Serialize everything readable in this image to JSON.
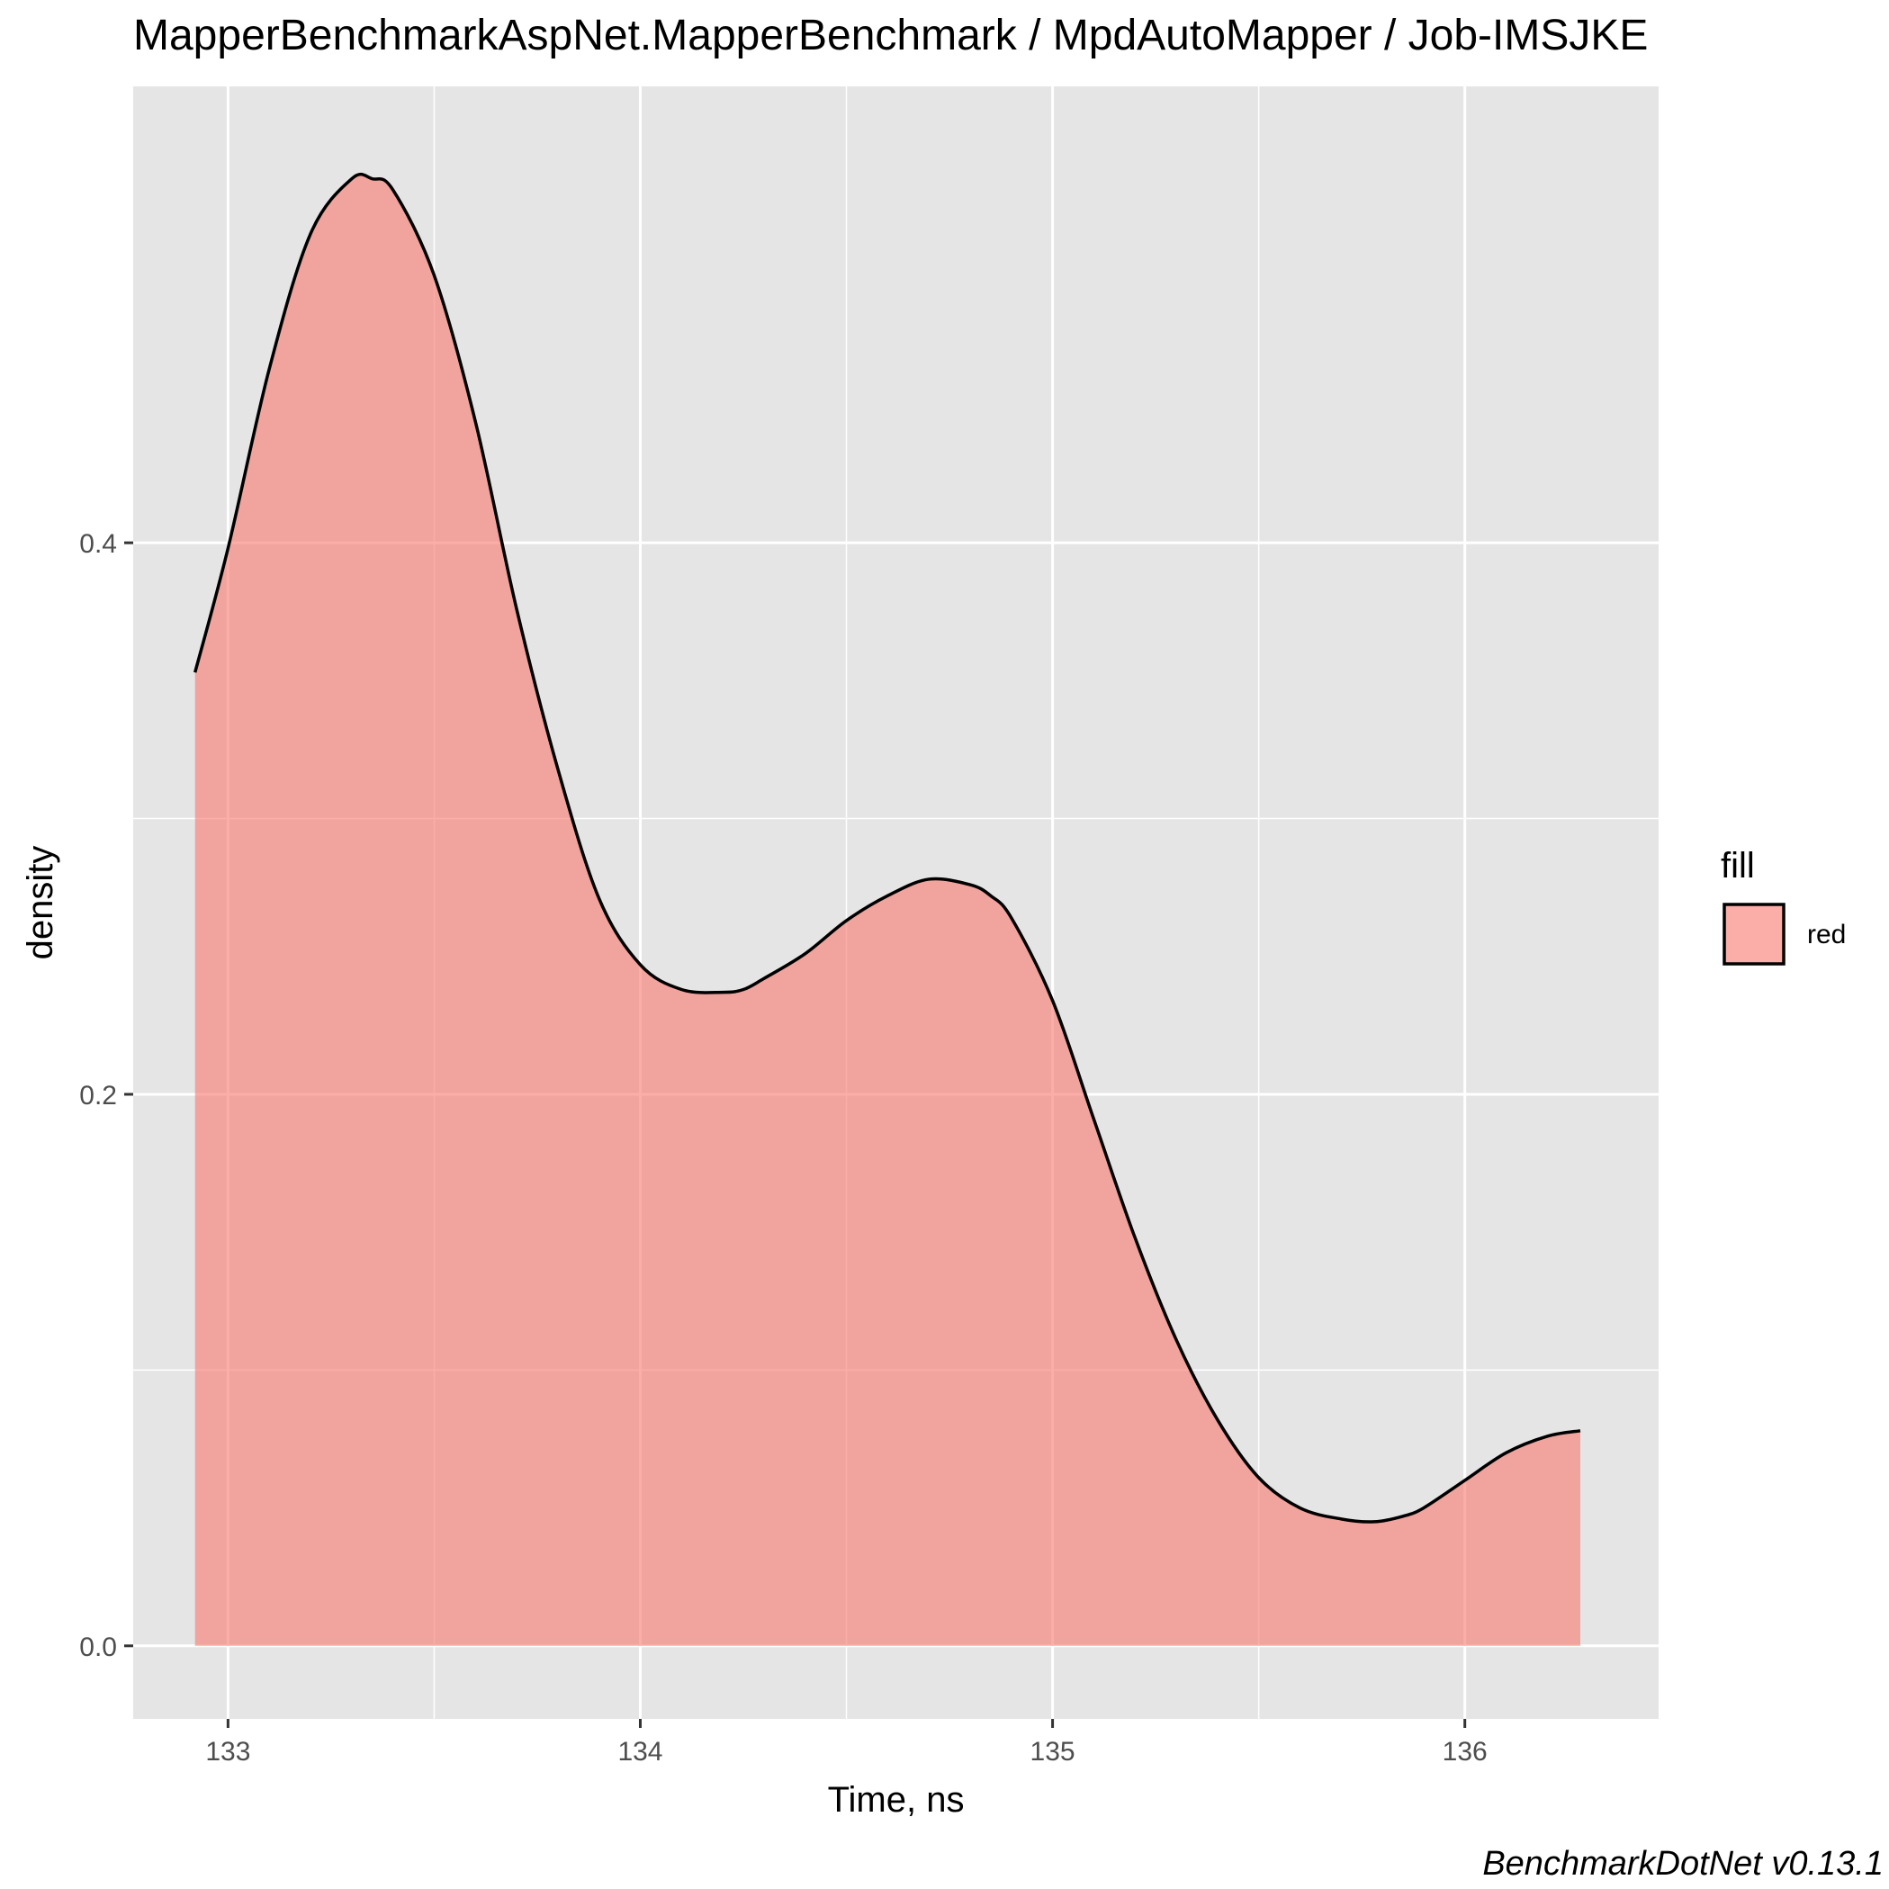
{
  "title": "MapperBenchmarkAspNet.MapperBenchmark / MpdAutoMapper / Job-IMSJKE",
  "caption": "BenchmarkDotNet v0.13.1",
  "colors": {
    "panel_background": "#e5e5e5",
    "grid": "#ffffff",
    "fill": "#f8766d",
    "line": "#000000"
  },
  "chart_data": {
    "type": "area",
    "title": "MapperBenchmarkAspNet.MapperBenchmark / MpdAutoMapper / Job-IMSJKE",
    "xlabel": "Time, ns",
    "ylabel": "density",
    "xlim": [
      132.77,
      136.47
    ],
    "ylim": [
      -0.0265,
      0.5655
    ],
    "x_ticks": [
      133,
      134,
      135,
      136
    ],
    "x_tick_labels": [
      "133",
      "134",
      "135",
      "136"
    ],
    "y_ticks": [
      0.0,
      0.2,
      0.4
    ],
    "y_tick_labels": [
      "0.0",
      "0.2",
      "0.4"
    ],
    "grid": true,
    "legend": {
      "title": "fill",
      "placement": "right",
      "entries": [
        "red"
      ]
    },
    "series": [
      {
        "name": "red",
        "fill_alpha": 0.6,
        "x": [
          132.92,
          133.0,
          133.1,
          133.2,
          133.3,
          133.35,
          133.4,
          133.5,
          133.6,
          133.7,
          133.8,
          133.9,
          134.0,
          134.1,
          134.2,
          134.25,
          134.3,
          134.4,
          134.5,
          134.6,
          134.7,
          134.8,
          134.85,
          134.9,
          135.0,
          135.1,
          135.2,
          135.3,
          135.4,
          135.5,
          135.6,
          135.7,
          135.78,
          135.85,
          135.9,
          136.0,
          136.1,
          136.2,
          136.28
        ],
        "y": [
          0.353,
          0.398,
          0.463,
          0.512,
          0.532,
          0.532,
          0.528,
          0.497,
          0.444,
          0.376,
          0.318,
          0.271,
          0.247,
          0.238,
          0.237,
          0.238,
          0.242,
          0.251,
          0.263,
          0.272,
          0.278,
          0.276,
          0.272,
          0.264,
          0.234,
          0.191,
          0.148,
          0.111,
          0.082,
          0.061,
          0.05,
          0.046,
          0.045,
          0.047,
          0.05,
          0.06,
          0.07,
          0.076,
          0.078
        ]
      }
    ]
  }
}
